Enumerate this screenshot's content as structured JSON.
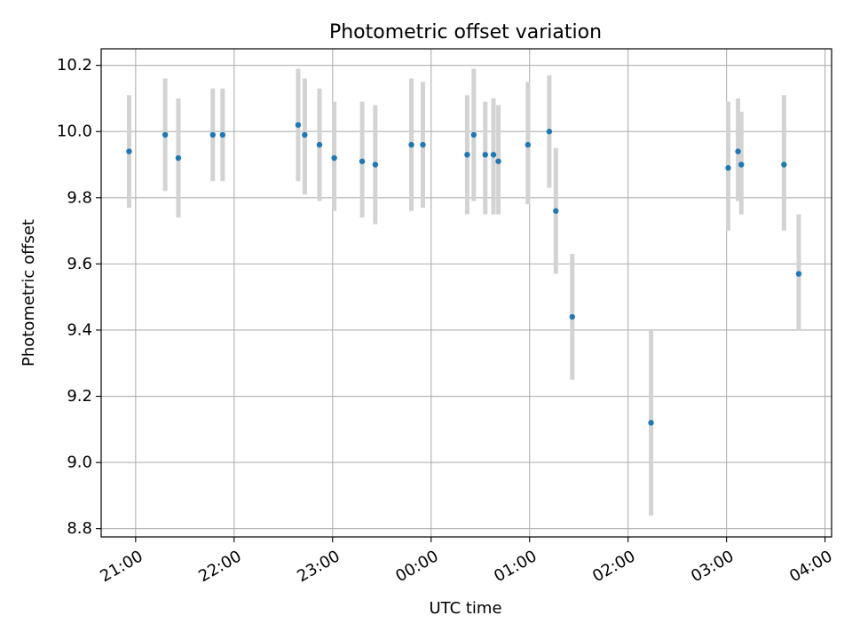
{
  "chart_data": {
    "type": "scatter",
    "title": "Photometric offset variation",
    "xlabel": "UTC time",
    "ylabel": "Photometric offset",
    "x_axis_type": "time",
    "xlim": [
      "2000-01-01T20:39:00",
      "2000-01-02T04:04:00"
    ],
    "ylim": [
      8.775,
      10.25
    ],
    "xticks": [
      {
        "label": "21:00",
        "t": "2000-01-01T21:00:00"
      },
      {
        "label": "22:00",
        "t": "2000-01-01T22:00:00"
      },
      {
        "label": "23:00",
        "t": "2000-01-01T23:00:00"
      },
      {
        "label": "00:00",
        "t": "2000-01-02T00:00:00"
      },
      {
        "label": "01:00",
        "t": "2000-01-02T01:00:00"
      },
      {
        "label": "02:00",
        "t": "2000-01-02T02:00:00"
      },
      {
        "label": "03:00",
        "t": "2000-01-02T03:00:00"
      },
      {
        "label": "04:00",
        "t": "2000-01-02T04:00:00"
      }
    ],
    "yticks": [
      8.8,
      9.0,
      9.2,
      9.4,
      9.6,
      9.8,
      10.0,
      10.2
    ],
    "ytick_labels": [
      "8.8",
      "9.0",
      "9.2",
      "9.4",
      "9.6",
      "9.8",
      "10.0",
      "10.2"
    ],
    "grid": true,
    "marker_color": "#1f77b4",
    "errorbar_color": "#d3d3d3",
    "points": [
      {
        "t": "2000-01-01T20:56:00",
        "y": 9.94,
        "ylow": 9.77,
        "yhigh": 10.11
      },
      {
        "t": "2000-01-01T21:18:00",
        "y": 9.99,
        "ylow": 9.82,
        "yhigh": 10.16
      },
      {
        "t": "2000-01-01T21:26:00",
        "y": 9.92,
        "ylow": 9.74,
        "yhigh": 10.1
      },
      {
        "t": "2000-01-01T21:47:00",
        "y": 9.99,
        "ylow": 9.85,
        "yhigh": 10.13
      },
      {
        "t": "2000-01-01T21:53:00",
        "y": 9.99,
        "ylow": 9.85,
        "yhigh": 10.13
      },
      {
        "t": "2000-01-01T22:39:00",
        "y": 10.02,
        "ylow": 9.85,
        "yhigh": 10.19
      },
      {
        "t": "2000-01-01T22:43:00",
        "y": 9.99,
        "ylow": 9.81,
        "yhigh": 10.16
      },
      {
        "t": "2000-01-01T22:52:00",
        "y": 9.96,
        "ylow": 9.79,
        "yhigh": 10.13
      },
      {
        "t": "2000-01-01T23:01:00",
        "y": 9.92,
        "ylow": 9.76,
        "yhigh": 10.09
      },
      {
        "t": "2000-01-01T23:18:00",
        "y": 9.91,
        "ylow": 9.74,
        "yhigh": 10.09
      },
      {
        "t": "2000-01-01T23:26:00",
        "y": 9.9,
        "ylow": 9.72,
        "yhigh": 10.08
      },
      {
        "t": "2000-01-01T23:48:00",
        "y": 9.96,
        "ylow": 9.76,
        "yhigh": 10.16
      },
      {
        "t": "2000-01-01T23:55:00",
        "y": 9.96,
        "ylow": 9.77,
        "yhigh": 10.15
      },
      {
        "t": "2000-01-02T00:22:00",
        "y": 9.93,
        "ylow": 9.75,
        "yhigh": 10.11
      },
      {
        "t": "2000-01-02T00:26:00",
        "y": 9.99,
        "ylow": 9.79,
        "yhigh": 10.19
      },
      {
        "t": "2000-01-02T00:33:00",
        "y": 9.93,
        "ylow": 9.75,
        "yhigh": 10.09
      },
      {
        "t": "2000-01-02T00:38:00",
        "y": 9.93,
        "ylow": 9.75,
        "yhigh": 10.1
      },
      {
        "t": "2000-01-02T00:41:00",
        "y": 9.91,
        "ylow": 9.75,
        "yhigh": 10.08
      },
      {
        "t": "2000-01-02T00:59:00",
        "y": 9.96,
        "ylow": 9.78,
        "yhigh": 10.15
      },
      {
        "t": "2000-01-02T01:12:00",
        "y": 10.0,
        "ylow": 9.83,
        "yhigh": 10.17
      },
      {
        "t": "2000-01-02T01:16:00",
        "y": 9.76,
        "ylow": 9.57,
        "yhigh": 9.95
      },
      {
        "t": "2000-01-02T01:26:00",
        "y": 9.44,
        "ylow": 9.25,
        "yhigh": 9.63
      },
      {
        "t": "2000-01-02T02:14:00",
        "y": 9.12,
        "ylow": 8.84,
        "yhigh": 9.4
      },
      {
        "t": "2000-01-02T03:01:00",
        "y": 9.89,
        "ylow": 9.7,
        "yhigh": 10.09
      },
      {
        "t": "2000-01-02T03:07:00",
        "y": 9.94,
        "ylow": 9.79,
        "yhigh": 10.1
      },
      {
        "t": "2000-01-02T03:09:00",
        "y": 9.9,
        "ylow": 9.75,
        "yhigh": 10.06
      },
      {
        "t": "2000-01-02T03:35:00",
        "y": 9.9,
        "ylow": 9.7,
        "yhigh": 10.11
      },
      {
        "t": "2000-01-02T03:44:00",
        "y": 9.57,
        "ylow": 9.4,
        "yhigh": 9.75
      }
    ]
  }
}
